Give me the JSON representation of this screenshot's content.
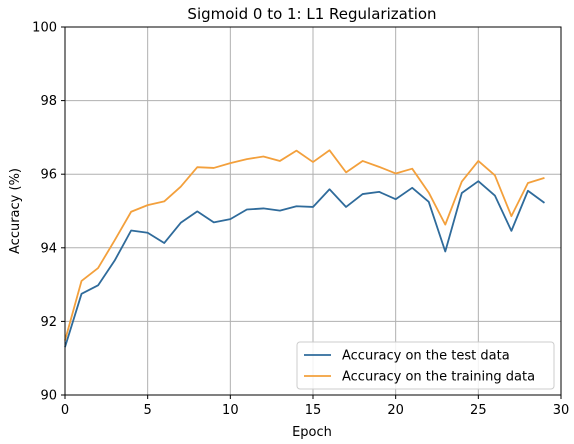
{
  "chart_data": {
    "type": "line",
    "title": "Sigmoid 0 to 1:  L1 Regularization",
    "xlabel": "Epoch",
    "ylabel": "Accuracy (%)",
    "xlim": [
      0,
      30
    ],
    "ylim": [
      90,
      100
    ],
    "xticks": [
      0,
      5,
      10,
      15,
      20,
      25,
      30
    ],
    "yticks": [
      90,
      92,
      94,
      96,
      98,
      100
    ],
    "grid": true,
    "legend_position": "lower-right",
    "x": [
      0,
      1,
      2,
      3,
      4,
      5,
      6,
      7,
      8,
      9,
      10,
      11,
      12,
      13,
      14,
      15,
      16,
      17,
      18,
      19,
      20,
      21,
      22,
      23,
      24,
      25,
      26,
      27,
      28,
      29
    ],
    "series": [
      {
        "name": "Accuracy on the test data",
        "color": "#2f6b9b",
        "values": [
          91.3,
          92.75,
          92.98,
          93.65,
          94.47,
          94.41,
          94.13,
          94.68,
          94.99,
          94.69,
          94.78,
          95.04,
          95.07,
          95.01,
          95.13,
          95.11,
          95.59,
          95.11,
          95.46,
          95.52,
          95.32,
          95.63,
          95.25,
          93.9,
          95.49,
          95.81,
          95.42,
          94.46,
          95.55,
          95.22
        ]
      },
      {
        "name": "Accuracy on the training data",
        "color": "#f3a03c",
        "values": [
          91.48,
          93.1,
          93.45,
          94.2,
          94.98,
          95.16,
          95.26,
          95.66,
          96.19,
          96.17,
          96.3,
          96.41,
          96.48,
          96.36,
          96.64,
          96.33,
          96.65,
          96.05,
          96.36,
          96.2,
          96.02,
          96.15,
          95.5,
          94.63,
          95.8,
          96.36,
          95.97,
          94.86,
          95.76,
          95.9
        ]
      }
    ]
  }
}
